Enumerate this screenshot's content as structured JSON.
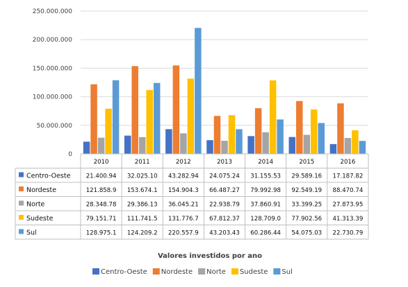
{
  "chart_data": {
    "type": "bar",
    "title": "Valores investidos por ano",
    "categories": [
      "2010",
      "2011",
      "2012",
      "2013",
      "2014",
      "2015",
      "2016"
    ],
    "y_ticks": [
      "250.000.000",
      "200.000.000",
      "150.000.000",
      "100.000.000",
      "50.000.000",
      "0"
    ],
    "ylim": [
      0,
      250000000
    ],
    "legend_position": "bottom",
    "grid": true,
    "series": [
      {
        "name": "Centro-Oeste",
        "color": "#4472C4",
        "values": [
          21400940,
          32025100,
          43282940,
          24075240,
          31155530,
          29589160,
          17187820
        ],
        "table": [
          "21.400.94",
          "32.025.10",
          "43.282.94",
          "24.075.24",
          "31.155.53",
          "29.589.16",
          "17.187.82"
        ]
      },
      {
        "name": "Nordeste",
        "color": "#ED7D31",
        "values": [
          121858900,
          153674100,
          154904300,
          66487270,
          79992980,
          92549190,
          88470740
        ],
        "table": [
          "121.858.9",
          "153.674.1",
          "154.904.3",
          "66.487.27",
          "79.992.98",
          "92.549.19",
          "88.470.74"
        ]
      },
      {
        "name": "Norte",
        "color": "#A5A5A5",
        "values": [
          28348780,
          29386130,
          36045210,
          22938790,
          37860910,
          33399250,
          27873950
        ],
        "table": [
          "28.348.78",
          "29.386.13",
          "36.045.21",
          "22.938.79",
          "37.860.91",
          "33.399.25",
          "27.873.95"
        ]
      },
      {
        "name": "Sudeste",
        "color": "#FFC000",
        "values": [
          79151710,
          111741500,
          131776700,
          67812370,
          128709000,
          77902560,
          41313390
        ],
        "table": [
          "79.151.71",
          "111.741.5",
          "131.776.7",
          "67.812.37",
          "128.709.0",
          "77.902.56",
          "41.313.39"
        ]
      },
      {
        "name": "Sul",
        "color": "#5B9BD5",
        "values": [
          128975100,
          124209200,
          220557900,
          43203430,
          60286440,
          54075030,
          22730790
        ],
        "table": [
          "128.975.1",
          "124.209.2",
          "220.557.9",
          "43.203.43",
          "60.286.44",
          "54.075.03",
          "22.730.79"
        ]
      }
    ]
  }
}
